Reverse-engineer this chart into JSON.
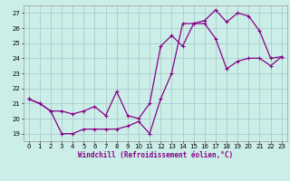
{
  "background_color": "#cceee8",
  "grid_color": "#aacccc",
  "line_color": "#880088",
  "xlim": [
    -0.5,
    23.5
  ],
  "ylim": [
    18.5,
    27.5
  ],
  "yticks": [
    19,
    20,
    21,
    22,
    23,
    24,
    25,
    26,
    27
  ],
  "xticks": [
    0,
    1,
    2,
    3,
    4,
    5,
    6,
    7,
    8,
    9,
    10,
    11,
    12,
    13,
    14,
    15,
    16,
    17,
    18,
    19,
    20,
    21,
    22,
    23
  ],
  "xlabel": "Windchill (Refroidissement éolien,°C)",
  "curve1_x": [
    0,
    1,
    2,
    3,
    4,
    5,
    6,
    7,
    8,
    9,
    10,
    11,
    12,
    13,
    14,
    15,
    16,
    17,
    18,
    19,
    20,
    21,
    22,
    23
  ],
  "curve1_y": [
    21.3,
    21.0,
    20.5,
    19.0,
    19.0,
    19.3,
    19.3,
    19.3,
    19.3,
    19.5,
    19.8,
    19.0,
    21.3,
    23.0,
    26.3,
    26.3,
    26.5,
    27.2,
    26.4,
    27.0,
    26.8,
    25.8,
    24.0,
    24.1
  ],
  "curve2_x": [
    0,
    1,
    2,
    3,
    4,
    5,
    6,
    7,
    8,
    9,
    10,
    11,
    12,
    13,
    14,
    15,
    16,
    17,
    18,
    19,
    20,
    21,
    22,
    23
  ],
  "curve2_y": [
    21.3,
    21.0,
    20.5,
    20.5,
    20.3,
    20.5,
    20.8,
    20.2,
    21.8,
    20.2,
    20.0,
    21.0,
    24.8,
    25.5,
    24.8,
    26.3,
    26.3,
    25.3,
    23.3,
    23.8,
    24.0,
    24.0,
    23.5,
    24.1
  ]
}
